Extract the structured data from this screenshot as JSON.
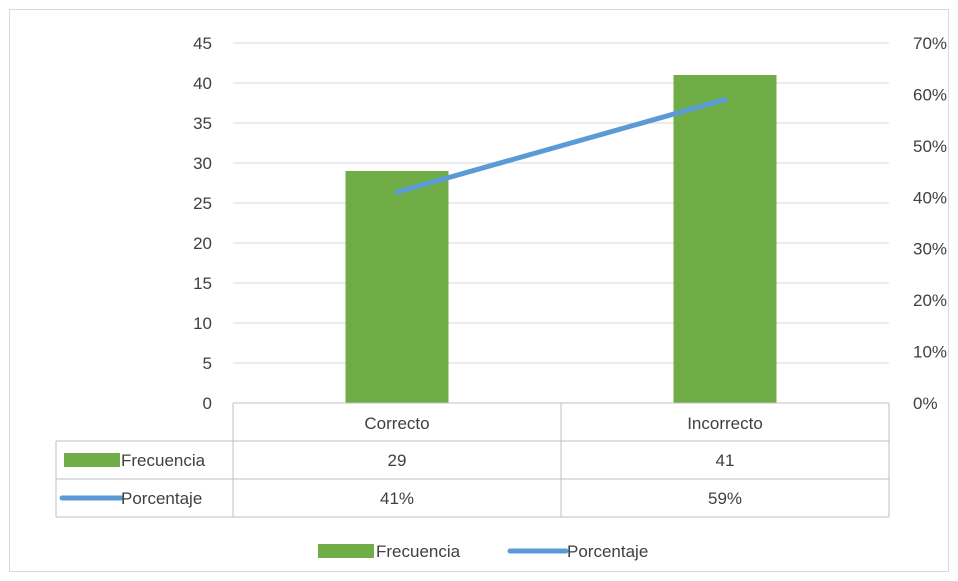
{
  "chart_data": {
    "type": "bar",
    "categories": [
      "Correcto",
      "Incorrecto"
    ],
    "series": [
      {
        "name": "Frecuencia",
        "kind": "bar",
        "axis": "left",
        "color": "#70ad47",
        "values": [
          29,
          41
        ]
      },
      {
        "name": "Porcentaje",
        "kind": "line",
        "axis": "right",
        "color": "#5b9bd5",
        "values": [
          0.41,
          0.59
        ]
      }
    ],
    "y_left": {
      "min": 0,
      "max": 45,
      "step": 5,
      "ticks": [
        "0",
        "5",
        "10",
        "15",
        "20",
        "25",
        "30",
        "35",
        "40",
        "45"
      ]
    },
    "y_right": {
      "min": 0,
      "max": 0.7,
      "step": 0.1,
      "ticks": [
        "0%",
        "10%",
        "20%",
        "30%",
        "40%",
        "50%",
        "60%",
        "70%"
      ]
    },
    "data_table": {
      "rows": [
        {
          "label": "Frecuencia",
          "values": [
            "29",
            "41"
          ]
        },
        {
          "label": "Porcentaje",
          "values": [
            "41%",
            "59%"
          ]
        }
      ]
    },
    "legend": {
      "position": "bottom",
      "entries": [
        "Frecuencia",
        "Porcentaje"
      ]
    },
    "gridlines": true
  }
}
